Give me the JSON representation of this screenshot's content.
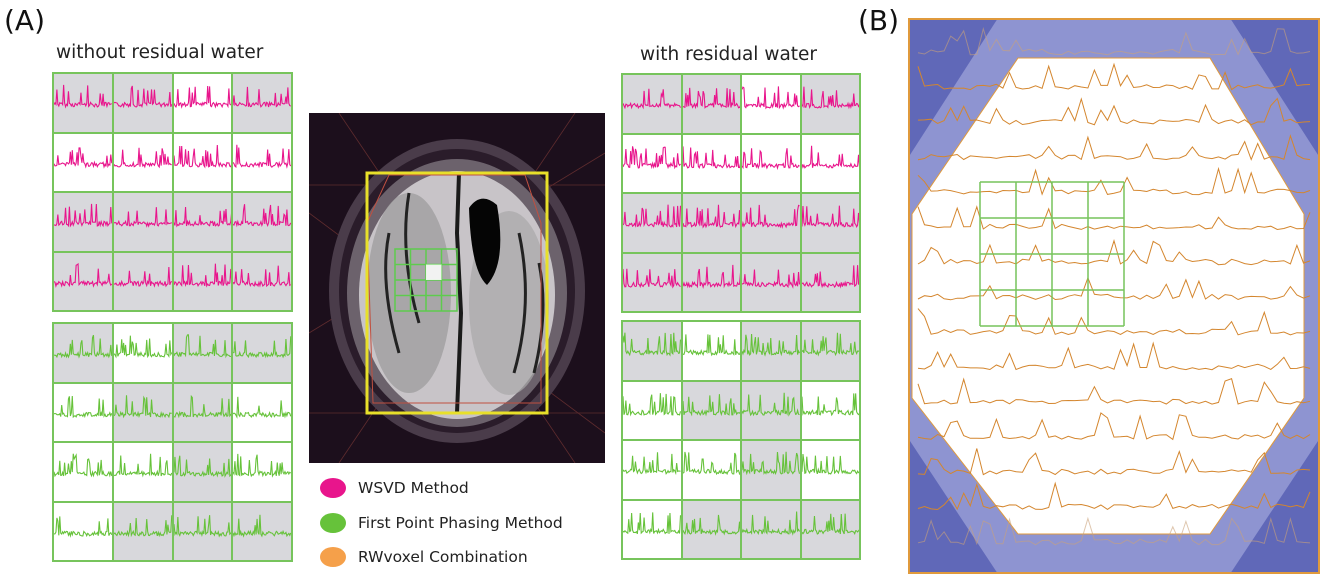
{
  "panel_a_label": "(A)",
  "panel_b_label": "(B)",
  "left_title": "without residual water",
  "right_title": "with residual water",
  "legend": [
    {
      "label": "WSVD Method",
      "color": "#e8158c"
    },
    {
      "label": "First Point Phasing Method",
      "color": "#66c23a"
    },
    {
      "label": "RWvoxel Combination",
      "color": "#f5a04a"
    }
  ],
  "colors": {
    "wsvd": "#e8158c",
    "fpp": "#66c23a",
    "rwvoxel": "#d4862e",
    "grid": "#77c45c",
    "roi_box": "#e8e02a",
    "panel_b_bg": "#6068b8",
    "panel_b_frame": "#e09a3c"
  },
  "grids": {
    "left_top": {
      "method": "wsvd",
      "shaded": [
        1,
        1,
        0,
        1,
        0,
        0,
        0,
        0,
        1,
        1,
        1,
        1,
        1,
        1,
        1,
        1
      ]
    },
    "left_bottom": {
      "method": "fpp",
      "shaded": [
        1,
        0,
        1,
        1,
        0,
        1,
        1,
        0,
        0,
        0,
        1,
        0,
        0,
        1,
        1,
        1
      ]
    },
    "right_top": {
      "method": "wsvd",
      "shaded": [
        1,
        1,
        0,
        1,
        0,
        0,
        0,
        0,
        1,
        1,
        1,
        1,
        1,
        1,
        1,
        1
      ]
    },
    "right_bottom": {
      "method": "fpp",
      "shaded": [
        1,
        0,
        1,
        1,
        0,
        1,
        1,
        0,
        0,
        0,
        1,
        0,
        0,
        1,
        1,
        1
      ]
    }
  },
  "panel_b": {
    "rows": 15,
    "grid_rows": 4,
    "grid_cols": 4
  }
}
